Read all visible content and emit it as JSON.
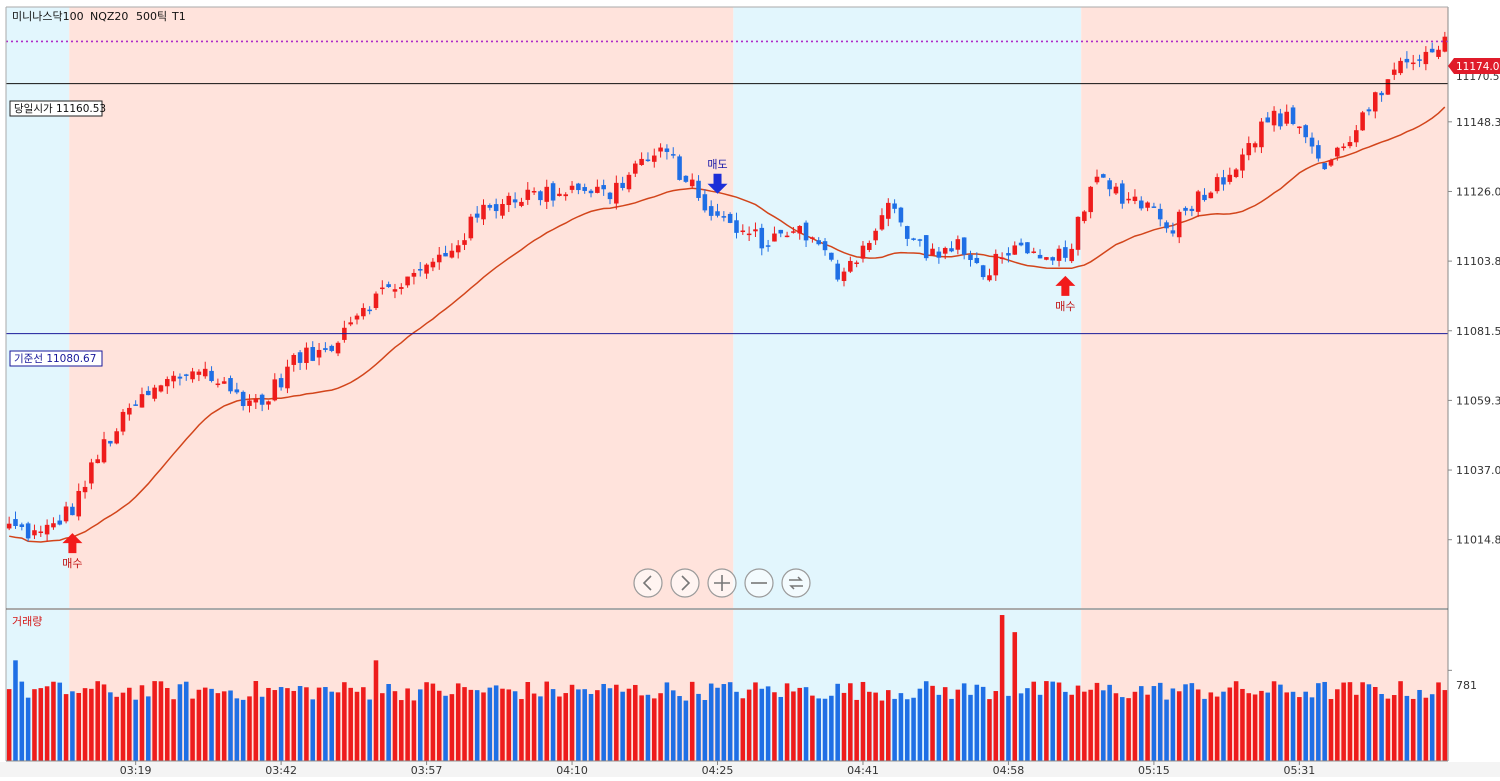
{
  "instrument": {
    "name": "미니나스닥100",
    "code": "NQZ20",
    "tick": "500틱",
    "window": "T1"
  },
  "colors": {
    "up": "#ee1c1c",
    "down": "#1f6fe5",
    "ma": "#d2451b",
    "ma_down": "#2a7bd6",
    "zone_red": "#ffe3dc",
    "zone_blue": "#e2f6fd",
    "ref_line": "#1a1a9a",
    "open_line": "#111111",
    "price_line": "#b02ac8",
    "price_tag": "#e01b2a"
  },
  "labels": {
    "volume_title": "거래량",
    "open_price_label": "당일시가 11160.53",
    "ref_line_label": "기준선 11080.67",
    "current_price": "11174.00",
    "axis_clip_price": "11170.57",
    "volume_tick": "781"
  },
  "signals": [
    {
      "label": "매수",
      "type": "buy",
      "index": 10
    },
    {
      "label": "매도",
      "type": "sell",
      "index": 112
    },
    {
      "label": "매수",
      "type": "buy",
      "index": 167
    }
  ],
  "nav_buttons": [
    {
      "name": "scroll-left-button",
      "glyph": "‹"
    },
    {
      "name": "scroll-right-button",
      "glyph": "›"
    },
    {
      "name": "zoom-in-button",
      "glyph": "+"
    },
    {
      "name": "zoom-out-button",
      "glyph": "−"
    },
    {
      "name": "reset-button",
      "glyph": "⟲"
    }
  ],
  "chart_data": {
    "type": "candlestick",
    "yaxis_ticks": [
      "11148.32",
      "11126.07",
      "11103.82",
      "11081.57",
      "11059.32",
      "11037.07",
      "11014.82"
    ],
    "yaxis_tick_values": [
      11148.32,
      11126.07,
      11103.82,
      11081.57,
      11059.32,
      11037.07,
      11014.82
    ],
    "ylim": [
      10993,
      11185
    ],
    "xaxis_ticks": [
      {
        "label": "03:19",
        "index": 20
      },
      {
        "label": "03:42",
        "index": 43
      },
      {
        "label": "03:57",
        "index": 66
      },
      {
        "label": "04:10",
        "index": 89
      },
      {
        "label": "04:25",
        "index": 112
      },
      {
        "label": "04:41",
        "index": 135
      },
      {
        "label": "04:58",
        "index": 158
      },
      {
        "label": "05:15",
        "index": 181
      },
      {
        "label": "05:31",
        "index": 204
      }
    ],
    "bar_count": 228,
    "zones": [
      {
        "from": 0,
        "to": 10,
        "color": "blue"
      },
      {
        "from": 10,
        "to": 115,
        "color": "red"
      },
      {
        "from": 115,
        "to": 170,
        "color": "blue"
      },
      {
        "from": 170,
        "to": 228,
        "color": "red"
      }
    ],
    "open_price": 11160.53,
    "ref_price": 11080.67,
    "current_price": 11174.0,
    "volume_ylim": [
      0,
      500
    ],
    "volume_tick_value": 781,
    "anchors": [
      [
        0,
        11019
      ],
      [
        5,
        11016
      ],
      [
        10,
        11025
      ],
      [
        15,
        11045
      ],
      [
        20,
        11058
      ],
      [
        25,
        11065
      ],
      [
        30,
        11070
      ],
      [
        35,
        11062
      ],
      [
        40,
        11058
      ],
      [
        45,
        11072
      ],
      [
        50,
        11075
      ],
      [
        55,
        11088
      ],
      [
        60,
        11095
      ],
      [
        65,
        11100
      ],
      [
        70,
        11108
      ],
      [
        75,
        11120
      ],
      [
        80,
        11125
      ],
      [
        85,
        11125
      ],
      [
        90,
        11128
      ],
      [
        95,
        11125
      ],
      [
        100,
        11136
      ],
      [
        104,
        11138
      ],
      [
        108,
        11127
      ],
      [
        112,
        11117
      ],
      [
        116,
        11113
      ],
      [
        120,
        11110
      ],
      [
        124,
        11115
      ],
      [
        128,
        11108
      ],
      [
        131,
        11100
      ],
      [
        135,
        11108
      ],
      [
        139,
        11122
      ],
      [
        142,
        11112
      ],
      [
        146,
        11106
      ],
      [
        150,
        11108
      ],
      [
        154,
        11100
      ],
      [
        158,
        11108
      ],
      [
        162,
        11104
      ],
      [
        165,
        11103
      ],
      [
        168,
        11110
      ],
      [
        172,
        11130
      ],
      [
        176,
        11125
      ],
      [
        180,
        11122
      ],
      [
        184,
        11115
      ],
      [
        188,
        11125
      ],
      [
        192,
        11130
      ],
      [
        196,
        11142
      ],
      [
        200,
        11150
      ],
      [
        204,
        11148
      ],
      [
        208,
        11133
      ],
      [
        212,
        11144
      ],
      [
        216,
        11155
      ],
      [
        220,
        11165
      ],
      [
        224,
        11172
      ],
      [
        227,
        11174
      ]
    ]
  }
}
